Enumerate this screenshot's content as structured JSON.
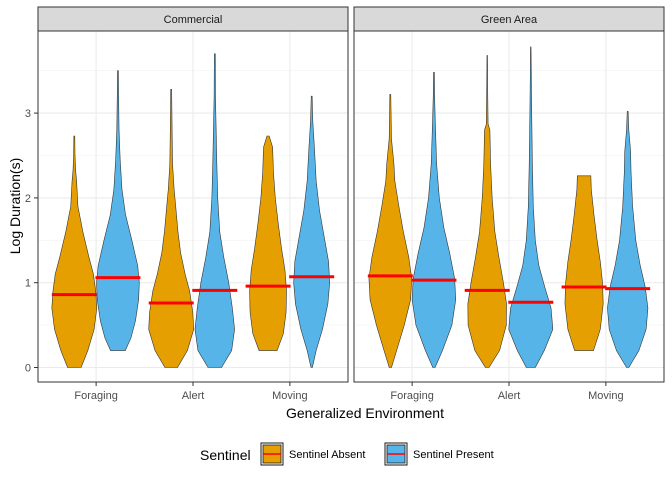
{
  "chart_data": {
    "type": "violin",
    "facets": [
      "Commercial",
      "Green Area"
    ],
    "categories": [
      "Foraging",
      "Alert",
      "Moving"
    ],
    "xlabel": "Generalized Environment",
    "ylabel": "Log Duration(s)",
    "ylim": [
      0,
      3.9
    ],
    "yticks": [
      0,
      1,
      2,
      3
    ],
    "grid": true,
    "legend": {
      "title": "Sentinel",
      "position": "bottom"
    },
    "series": [
      {
        "name": "Sentinel Absent",
        "color": "#E69F00"
      },
      {
        "name": "Sentinel Present",
        "color": "#56B4E9"
      }
    ],
    "median_color": "#FF0000",
    "groups": [
      {
        "facet": "Commercial",
        "category": "Foraging",
        "series": "Sentinel Absent",
        "min": 0.0,
        "max": 2.73,
        "median": 0.86,
        "profile": [
          [
            0,
            0.3
          ],
          [
            0.2,
            0.6
          ],
          [
            0.45,
            0.88
          ],
          [
            0.7,
            1.0
          ],
          [
            0.9,
            0.95
          ],
          [
            1.1,
            0.85
          ],
          [
            1.3,
            0.65
          ],
          [
            1.6,
            0.38
          ],
          [
            1.9,
            0.16
          ],
          [
            2.2,
            0.1
          ],
          [
            2.32,
            0.06
          ],
          [
            2.5,
            0.03
          ],
          [
            2.73,
            0.02
          ]
        ]
      },
      {
        "facet": "Commercial",
        "category": "Foraging",
        "series": "Sentinel Present",
        "min": 0.2,
        "max": 3.5,
        "median": 1.06,
        "profile": [
          [
            0.2,
            0.33
          ],
          [
            0.35,
            0.58
          ],
          [
            0.55,
            0.78
          ],
          [
            0.8,
            0.92
          ],
          [
            1.0,
            0.95
          ],
          [
            1.2,
            0.88
          ],
          [
            1.5,
            0.62
          ],
          [
            1.8,
            0.34
          ],
          [
            2.1,
            0.18
          ],
          [
            2.45,
            0.1
          ],
          [
            2.8,
            0.05
          ],
          [
            3.2,
            0.03
          ],
          [
            3.5,
            0.02
          ]
        ]
      },
      {
        "facet": "Commercial",
        "category": "Alert",
        "series": "Sentinel Absent",
        "min": 0.0,
        "max": 3.28,
        "median": 0.76,
        "profile": [
          [
            0,
            0.28
          ],
          [
            0.2,
            0.72
          ],
          [
            0.45,
            1.0
          ],
          [
            0.65,
            0.96
          ],
          [
            0.9,
            0.82
          ],
          [
            1.1,
            0.62
          ],
          [
            1.35,
            0.42
          ],
          [
            1.6,
            0.3
          ],
          [
            1.9,
            0.2
          ],
          [
            2.1,
            0.13
          ],
          [
            2.4,
            0.06
          ],
          [
            2.8,
            0.04
          ],
          [
            3.28,
            0.02
          ]
        ]
      },
      {
        "facet": "Commercial",
        "category": "Alert",
        "series": "Sentinel Present",
        "min": 0.0,
        "max": 3.7,
        "median": 0.91,
        "profile": [
          [
            0,
            0.3
          ],
          [
            0.2,
            0.75
          ],
          [
            0.45,
            0.88
          ],
          [
            0.7,
            0.78
          ],
          [
            1.0,
            0.62
          ],
          [
            1.3,
            0.4
          ],
          [
            1.6,
            0.22
          ],
          [
            2.0,
            0.13
          ],
          [
            2.4,
            0.09
          ],
          [
            2.8,
            0.06
          ],
          [
            3.2,
            0.03
          ],
          [
            3.7,
            0.02
          ]
        ]
      },
      {
        "facet": "Commercial",
        "category": "Moving",
        "series": "Sentinel Absent",
        "min": 0.2,
        "max": 2.73,
        "median": 0.96,
        "profile": [
          [
            0.2,
            0.4
          ],
          [
            0.4,
            0.68
          ],
          [
            0.65,
            0.8
          ],
          [
            0.9,
            0.82
          ],
          [
            1.15,
            0.75
          ],
          [
            1.4,
            0.6
          ],
          [
            1.7,
            0.45
          ],
          [
            2.0,
            0.32
          ],
          [
            2.3,
            0.24
          ],
          [
            2.6,
            0.2
          ],
          [
            2.73,
            0.05
          ]
        ]
      },
      {
        "facet": "Commercial",
        "category": "Moving",
        "series": "Sentinel Present",
        "min": 0.0,
        "max": 3.2,
        "median": 1.07,
        "profile": [
          [
            0,
            0.03
          ],
          [
            0.2,
            0.2
          ],
          [
            0.45,
            0.48
          ],
          [
            0.75,
            0.72
          ],
          [
            1.0,
            0.8
          ],
          [
            1.25,
            0.75
          ],
          [
            1.55,
            0.55
          ],
          [
            1.85,
            0.35
          ],
          [
            2.2,
            0.2
          ],
          [
            2.6,
            0.12
          ],
          [
            2.9,
            0.05
          ],
          [
            3.2,
            0.02
          ]
        ]
      },
      {
        "facet": "Green Area",
        "category": "Foraging",
        "series": "Sentinel Absent",
        "min": 0.0,
        "max": 3.22,
        "median": 1.08,
        "profile": [
          [
            0,
            0.05
          ],
          [
            0.2,
            0.28
          ],
          [
            0.5,
            0.62
          ],
          [
            0.8,
            0.9
          ],
          [
            1.05,
            0.95
          ],
          [
            1.3,
            0.82
          ],
          [
            1.6,
            0.58
          ],
          [
            1.9,
            0.38
          ],
          [
            2.2,
            0.2
          ],
          [
            2.4,
            0.16
          ],
          [
            2.7,
            0.05
          ],
          [
            3.22,
            0.02
          ]
        ]
      },
      {
        "facet": "Green Area",
        "category": "Foraging",
        "series": "Sentinel Present",
        "min": 0.0,
        "max": 3.48,
        "median": 1.03,
        "profile": [
          [
            0,
            0.05
          ],
          [
            0.2,
            0.38
          ],
          [
            0.5,
            0.8
          ],
          [
            0.8,
            0.97
          ],
          [
            1.05,
            0.92
          ],
          [
            1.35,
            0.7
          ],
          [
            1.65,
            0.44
          ],
          [
            2.0,
            0.24
          ],
          [
            2.4,
            0.12
          ],
          [
            2.9,
            0.06
          ],
          [
            3.2,
            0.03
          ],
          [
            3.48,
            0.02
          ]
        ]
      },
      {
        "facet": "Green Area",
        "category": "Alert",
        "series": "Sentinel Absent",
        "min": 0.0,
        "max": 3.68,
        "median": 0.91,
        "profile": [
          [
            0,
            0.08
          ],
          [
            0.2,
            0.55
          ],
          [
            0.5,
            0.85
          ],
          [
            0.75,
            0.86
          ],
          [
            1.0,
            0.72
          ],
          [
            1.3,
            0.52
          ],
          [
            1.6,
            0.34
          ],
          [
            2.0,
            0.22
          ],
          [
            2.4,
            0.15
          ],
          [
            2.8,
            0.12
          ],
          [
            2.87,
            0.04
          ],
          [
            3.3,
            0.02
          ],
          [
            3.68,
            0.01
          ]
        ]
      },
      {
        "facet": "Green Area",
        "category": "Alert",
        "series": "Sentinel Present",
        "min": 0.0,
        "max": 3.78,
        "median": 0.77,
        "profile": [
          [
            0,
            0.2
          ],
          [
            0.2,
            0.6
          ],
          [
            0.45,
            0.98
          ],
          [
            0.7,
            0.9
          ],
          [
            0.95,
            0.62
          ],
          [
            1.2,
            0.36
          ],
          [
            1.5,
            0.2
          ],
          [
            1.9,
            0.11
          ],
          [
            2.4,
            0.07
          ],
          [
            3.0,
            0.04
          ],
          [
            3.5,
            0.02
          ],
          [
            3.78,
            0.01
          ]
        ]
      },
      {
        "facet": "Green Area",
        "category": "Moving",
        "series": "Sentinel Absent",
        "min": 0.2,
        "max": 2.26,
        "median": 0.95,
        "profile": [
          [
            0.2,
            0.42
          ],
          [
            0.45,
            0.72
          ],
          [
            0.75,
            0.85
          ],
          [
            1.0,
            0.82
          ],
          [
            1.25,
            0.72
          ],
          [
            1.5,
            0.58
          ],
          [
            1.8,
            0.44
          ],
          [
            2.1,
            0.32
          ],
          [
            2.26,
            0.3
          ]
        ]
      },
      {
        "facet": "Green Area",
        "category": "Moving",
        "series": "Sentinel Present",
        "min": 0.0,
        "max": 3.02,
        "median": 0.93,
        "profile": [
          [
            0,
            0.05
          ],
          [
            0.2,
            0.5
          ],
          [
            0.45,
            0.82
          ],
          [
            0.7,
            0.9
          ],
          [
            0.95,
            0.78
          ],
          [
            1.2,
            0.56
          ],
          [
            1.5,
            0.36
          ],
          [
            1.9,
            0.22
          ],
          [
            2.3,
            0.15
          ],
          [
            2.55,
            0.13
          ],
          [
            2.8,
            0.05
          ],
          [
            3.02,
            0.02
          ]
        ]
      }
    ]
  }
}
